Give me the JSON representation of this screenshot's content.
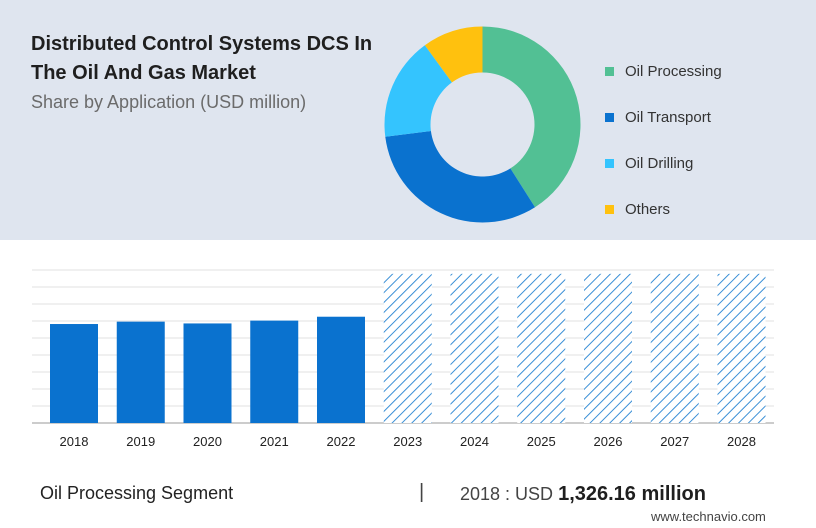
{
  "header": {
    "title": "Distributed Control Systems DCS In The Oil And Gas Market",
    "subtitle": "Share by Application (USD million)"
  },
  "donut": {
    "type": "pie",
    "segments": [
      {
        "label": "Oil Processing",
        "share": 0.41,
        "color": "#52c094"
      },
      {
        "label": "Oil Transport",
        "share": 0.32,
        "color": "#0a72cf"
      },
      {
        "label": "Oil Drilling",
        "share": 0.17,
        "color": "#34c4fe"
      },
      {
        "label": "Others",
        "share": 0.1,
        "color": "#ffc10e"
      }
    ]
  },
  "chart_data": {
    "type": "bar",
    "categories": [
      "2018",
      "2019",
      "2020",
      "2021",
      "2022",
      "2023",
      "2024",
      "2025",
      "2026",
      "2027",
      "2028"
    ],
    "values": [
      1326.16,
      1358,
      1334,
      1372,
      1424,
      null,
      null,
      null,
      null,
      null,
      null
    ],
    "forecast_categories": [
      "2023",
      "2024",
      "2025",
      "2026",
      "2027",
      "2028"
    ],
    "ylim": [
      0,
      2050
    ],
    "grid": true,
    "bar_color": "#0a72cf",
    "forecast_style": "hatched",
    "forecast_color": "#3a8fd6"
  },
  "footer": {
    "segment": "Oil Processing Segment",
    "separator": "|",
    "year_prefix": "2018 : USD",
    "value": "1,326.16 million",
    "source": "www.technavio.com"
  }
}
